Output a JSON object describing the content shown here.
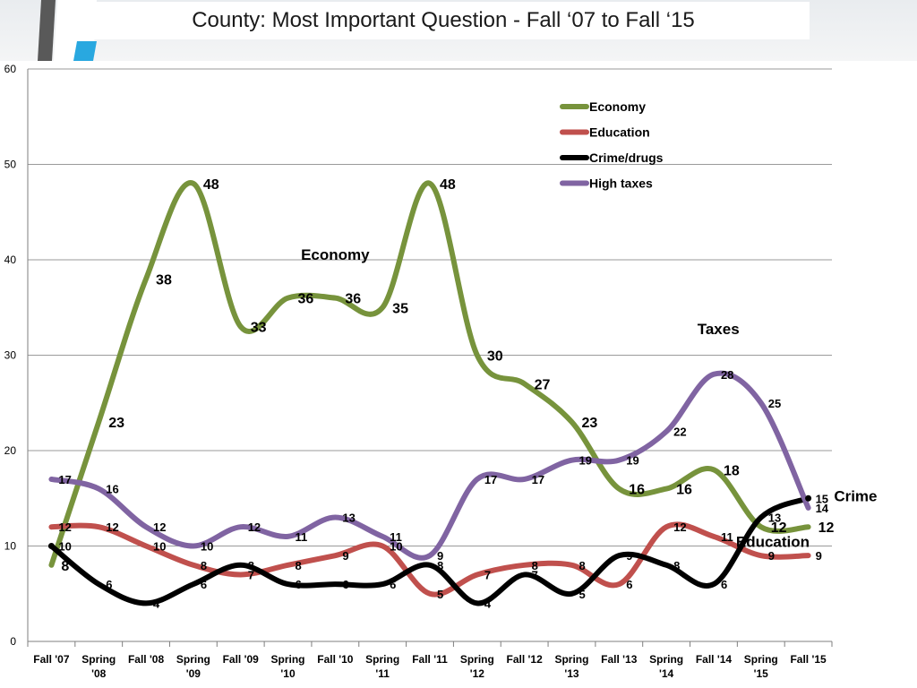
{
  "slide": {
    "title": "County: Most Important Question - Fall ‘07 to Fall ‘15"
  },
  "chart_data": {
    "type": "line",
    "title": "County: Most Important Question - Fall ‘07 to Fall ‘15",
    "xlabel": "",
    "ylabel": "",
    "ylim": [
      0,
      60
    ],
    "y_ticks": [
      "0",
      "10",
      "20",
      "30",
      "40",
      "50",
      "60"
    ],
    "grid": true,
    "legend_position": "top-right",
    "categories": [
      [
        "Fall '07"
      ],
      [
        "Spring",
        "'08"
      ],
      [
        "Fall '08"
      ],
      [
        "Spring",
        "'09"
      ],
      [
        "Fall '09"
      ],
      [
        "Spring",
        "'10"
      ],
      [
        "Fall '10"
      ],
      [
        "Spring",
        "'11"
      ],
      [
        "Fall '11"
      ],
      [
        "Spring",
        "'12"
      ],
      [
        "Fall '12"
      ],
      [
        "Spring",
        "'13"
      ],
      [
        "Fall '13"
      ],
      [
        "Spring",
        "'14"
      ],
      [
        "Fall '14"
      ],
      [
        "Spring",
        "'15"
      ],
      [
        "Fall '15"
      ]
    ],
    "series": [
      {
        "name": "Economy",
        "color": "#77933c",
        "label_size": 16,
        "values": [
          8,
          23,
          38,
          48,
          33,
          36,
          36,
          35,
          48,
          30,
          27,
          23,
          16,
          16,
          18,
          12,
          12
        ]
      },
      {
        "name": "Education",
        "color": "#c0504d",
        "label_size": 13,
        "values": [
          12,
          12,
          10,
          8,
          7,
          8,
          9,
          10,
          5,
          7,
          8,
          8,
          6,
          12,
          11,
          9,
          9
        ]
      },
      {
        "name": "Crime/drugs",
        "color": "#000000",
        "label_size": 13,
        "values": [
          10,
          6,
          4,
          6,
          8,
          6,
          6,
          6,
          8,
          4,
          7,
          5,
          9,
          8,
          6,
          13,
          15
        ]
      },
      {
        "name": "High taxes",
        "color": "#8064a2",
        "label_size": 13,
        "values": [
          17,
          16,
          12,
          10,
          12,
          11,
          13,
          11,
          9,
          17,
          17,
          19,
          19,
          22,
          28,
          25,
          14
        ]
      }
    ],
    "annotations": [
      {
        "text": "Economy",
        "x_index": 6.5,
        "y": 40
      },
      {
        "text": "Taxes",
        "x_index": 14.6,
        "y": 32.2
      },
      {
        "text": "Crime",
        "x_index": 17.5,
        "y": 14.7
      },
      {
        "text": "Education",
        "x_index": 15.75,
        "y": 9.9
      }
    ]
  }
}
